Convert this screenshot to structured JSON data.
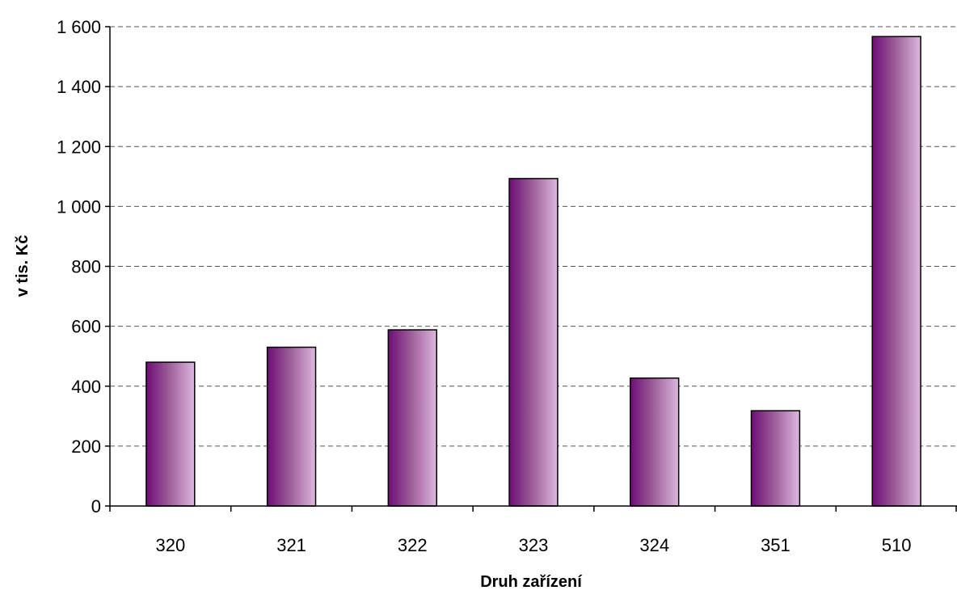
{
  "chart_data": {
    "type": "bar",
    "title": "",
    "xlabel": "Druh zařízení",
    "ylabel": "v tis. Kč",
    "categories": [
      "320",
      "321",
      "322",
      "323",
      "324",
      "351",
      "510"
    ],
    "values": [
      480,
      530,
      588,
      1093,
      427,
      318,
      1567
    ],
    "ylim": [
      0,
      1600
    ],
    "yticks": [
      0,
      200,
      400,
      600,
      800,
      1000,
      1200,
      1400,
      1600
    ],
    "ytick_labels": [
      "0",
      "200",
      "400",
      "600",
      "800",
      "1 000",
      "1 200",
      "1 400",
      "1 600"
    ],
    "grid": "horizontal-dashed",
    "legend": "none",
    "colors": {
      "bar_dark": "#6e0d78",
      "bar_mid": "#9a5a96",
      "bar_light": "#ddb7dd",
      "bar_outline": "#000000",
      "grid": "#555555"
    }
  }
}
